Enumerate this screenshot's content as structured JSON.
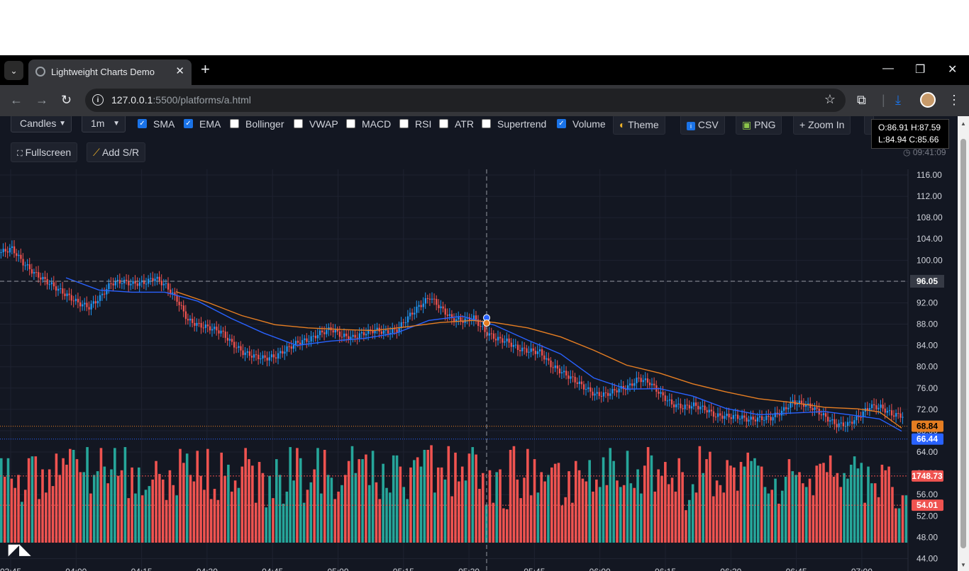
{
  "browser": {
    "tab_title": "Lightweight Charts Demo",
    "tab_close": "✕",
    "new_tab": "+",
    "url_host": "127.0.0.1",
    "url_path": ":5500/platforms/a.html",
    "minimize": "—",
    "restore": "❐",
    "close": "✕"
  },
  "toolbar": {
    "chart_type": "Candles",
    "interval": "1m",
    "indicators": [
      {
        "label": "SMA",
        "checked": true
      },
      {
        "label": "EMA",
        "checked": true
      },
      {
        "label": "Bollinger",
        "checked": false
      },
      {
        "label": "VWAP",
        "checked": false
      },
      {
        "label": "MACD",
        "checked": false
      },
      {
        "label": "RSI",
        "checked": false
      },
      {
        "label": "ATR",
        "checked": false
      },
      {
        "label": "Supertrend",
        "checked": false
      },
      {
        "label": "Volume",
        "checked": true
      }
    ],
    "theme_label": "Theme",
    "csv_label": "CSV",
    "png_label": "PNG",
    "zoom_in_label": "Zoom In",
    "fullscreen_label": "Fullscreen",
    "add_sr_label": "Add S/R"
  },
  "legend": {
    "ohlc_line1": "O:86.91 H:87.59",
    "ohlc_line2": "L:84.94 C:85.66",
    "clock": "09:41:09"
  },
  "colors": {
    "background": "#131722",
    "up": "#26a69a",
    "down": "#ef5350",
    "candle_up": "#2196f3",
    "sma": "#2962ff",
    "ema": "#e67e22"
  },
  "chart_data": {
    "type": "candlestick",
    "y_ticks": [
      "116.00",
      "112.00",
      "108.00",
      "104.00",
      "100.00",
      "96.00",
      "92.00",
      "88.00",
      "84.00",
      "80.00",
      "76.00",
      "72.00",
      "68.00",
      "64.00",
      "60.00",
      "56.00",
      "52.00",
      "48.00",
      "44.00"
    ],
    "x_ticks": [
      "03:45",
      "04:00",
      "04:15",
      "04:30",
      "04:45",
      "05:00",
      "05:15",
      "05:30",
      "05:45",
      "06:00",
      "06:15",
      "06:30",
      "06:45",
      "07:00"
    ],
    "crosshair_price": "96.05",
    "price_labels": [
      {
        "value": "68.84",
        "color": "#e67e22"
      },
      {
        "value": "66.44",
        "color": "#2962ff"
      },
      {
        "value": "1748.73",
        "color": "#ef5350"
      },
      {
        "value": "54.01",
        "color": "#ef5350"
      }
    ],
    "close_path": [
      [
        0,
        101.5
      ],
      [
        5,
        102.2
      ],
      [
        10,
        99.5
      ],
      [
        15,
        97.6
      ],
      [
        20,
        96.2
      ],
      [
        25,
        94.8
      ],
      [
        30,
        93.4
      ],
      [
        35,
        92.0
      ],
      [
        40,
        91.2
      ],
      [
        45,
        93.0
      ],
      [
        50,
        95.7
      ],
      [
        55,
        96.0
      ],
      [
        60,
        95.6
      ],
      [
        65,
        95.8
      ],
      [
        70,
        96.7
      ],
      [
        75,
        95.2
      ],
      [
        80,
        92.6
      ],
      [
        85,
        88.7
      ],
      [
        90,
        87.8
      ],
      [
        95,
        87.3
      ],
      [
        100,
        86.6
      ],
      [
        105,
        84.4
      ],
      [
        110,
        82.7
      ],
      [
        115,
        82.0
      ],
      [
        120,
        81.6
      ],
      [
        125,
        82.0
      ],
      [
        130,
        83.4
      ],
      [
        135,
        84.6
      ],
      [
        140,
        85.1
      ],
      [
        145,
        86.3
      ],
      [
        150,
        87.1
      ],
      [
        155,
        85.8
      ],
      [
        160,
        85.5
      ],
      [
        165,
        86.3
      ],
      [
        170,
        86.9
      ],
      [
        175,
        86.5
      ],
      [
        180,
        86.9
      ],
      [
        185,
        89.3
      ],
      [
        190,
        91.3
      ],
      [
        195,
        93.1
      ],
      [
        200,
        91.0
      ],
      [
        205,
        89.0
      ],
      [
        210,
        88.7
      ],
      [
        215,
        89.2
      ],
      [
        220,
        86.6
      ],
      [
        225,
        85.3
      ],
      [
        230,
        84.8
      ],
      [
        235,
        83.4
      ],
      [
        240,
        83.0
      ],
      [
        245,
        82.8
      ],
      [
        250,
        80.3
      ],
      [
        255,
        79.0
      ],
      [
        260,
        77.7
      ],
      [
        265,
        76.2
      ],
      [
        270,
        74.8
      ],
      [
        275,
        74.8
      ],
      [
        280,
        75.7
      ],
      [
        285,
        76.2
      ],
      [
        290,
        77.8
      ],
      [
        295,
        77.0
      ],
      [
        300,
        74.8
      ],
      [
        305,
        73.0
      ],
      [
        310,
        72.4
      ],
      [
        315,
        72.8
      ],
      [
        320,
        72.1
      ],
      [
        325,
        70.8
      ],
      [
        330,
        70.7
      ],
      [
        335,
        70.6
      ],
      [
        340,
        70.1
      ],
      [
        345,
        70.3
      ],
      [
        350,
        70.4
      ],
      [
        355,
        71.6
      ],
      [
        360,
        73.4
      ],
      [
        365,
        73.0
      ],
      [
        370,
        72.1
      ],
      [
        375,
        70.5
      ],
      [
        380,
        69.1
      ],
      [
        385,
        69.2
      ],
      [
        390,
        70.6
      ],
      [
        395,
        72.6
      ],
      [
        400,
        72.4
      ],
      [
        405,
        71.1
      ],
      [
        410,
        70.8
      ]
    ],
    "sma": [
      [
        30,
        96.7
      ],
      [
        45,
        94.4
      ],
      [
        60,
        94.0
      ],
      [
        75,
        94.0
      ],
      [
        90,
        92.3
      ],
      [
        105,
        89.1
      ],
      [
        120,
        86.3
      ],
      [
        135,
        84.0
      ],
      [
        150,
        84.8
      ],
      [
        165,
        85.3
      ],
      [
        180,
        86.3
      ],
      [
        195,
        88.7
      ],
      [
        210,
        89.5
      ],
      [
        225,
        87.8
      ],
      [
        240,
        85.0
      ],
      [
        255,
        82.4
      ],
      [
        270,
        77.9
      ],
      [
        285,
        75.8
      ],
      [
        300,
        75.9
      ],
      [
        315,
        74.5
      ],
      [
        330,
        72.2
      ],
      [
        345,
        71.0
      ],
      [
        360,
        71.3
      ],
      [
        375,
        71.6
      ],
      [
        390,
        70.8
      ],
      [
        400,
        70.2
      ],
      [
        410,
        67.9
      ]
    ],
    "ema": [
      [
        80,
        94.1
      ],
      [
        95,
        92.0
      ],
      [
        110,
        89.6
      ],
      [
        125,
        87.9
      ],
      [
        140,
        87.3
      ],
      [
        155,
        87.0
      ],
      [
        170,
        86.8
      ],
      [
        185,
        87.5
      ],
      [
        200,
        88.3
      ],
      [
        215,
        88.7
      ],
      [
        225,
        88.3
      ],
      [
        240,
        87.3
      ],
      [
        255,
        85.6
      ],
      [
        270,
        83.1
      ],
      [
        285,
        80.3
      ],
      [
        300,
        78.8
      ],
      [
        315,
        76.8
      ],
      [
        330,
        75.3
      ],
      [
        345,
        74.0
      ],
      [
        360,
        73.3
      ],
      [
        375,
        72.4
      ],
      [
        390,
        72.1
      ],
      [
        400,
        71.5
      ],
      [
        410,
        68.5
      ]
    ],
    "volume": [
      91,
      71,
      91,
      69,
      59,
      73,
      44,
      57,
      91,
      93,
      93,
      47,
      79,
      54,
      79,
      61,
      96,
      73,
      91,
      84,
      101,
      100,
      90,
      76,
      76,
      103,
      53,
      73,
      77,
      102,
      82,
      64,
      79,
      102,
      72,
      78,
      103,
      48,
      81,
      53,
      81,
      51,
      57,
      61,
      68,
      88,
      74,
      68,
      46,
      78,
      62,
      51,
      101,
      86,
      96,
      73,
      66,
      99,
      72,
      57,
      101,
      47,
      58,
      46,
      97,
      72,
      84,
      55,
      67,
      59,
      82,
      102,
      90,
      83,
      43,
      87,
      75,
      38,
      72,
      48,
      90,
      73,
      42,
      55,
      103,
      67,
      102,
      91,
      43,
      57,
      65,
      79,
      102,
      53,
      100,
      73,
      70,
      47,
      55,
      62,
      73,
      88,
      104,
      75,
      90,
      90,
      95,
      62,
      99,
      65,
      47,
      85,
      59,
      54,
      94,
      94,
      82,
      60,
      47,
      81,
      89,
      92,
      82,
      100,
      100,
      105,
      54,
      81,
      81,
      68,
      104,
      50,
      97,
      66,
      82,
      67,
      96,
      103,
      95,
      58,
      75,
      41,
      78,
      43,
      76,
      79,
      37,
      36,
      100,
      104,
      68,
      48,
      70,
      101,
      51,
      90,
      54,
      76,
      66,
      73,
      81,
      85,
      86,
      40,
      49,
      77,
      43,
      88,
      78,
      69,
      66,
      89,
      55,
      68,
      60,
      92,
      62,
      102,
      88,
      67,
      60,
      62,
      99,
      64,
      59,
      79,
      53,
      83,
      103,
      94,
      55,
      79,
      72,
      87,
      63,
      70,
      55,
      91,
      76,
      35,
      46,
      63,
      54,
      104,
      75,
      90,
      98,
      50,
      67,
      62,
      54,
      89,
      83,
      81,
      56,
      87,
      82,
      97,
      88,
      91,
      83,
      82,
      60,
      53,
      57,
      69,
      42,
      56,
      71,
      90,
      77,
      73,
      76,
      64,
      60,
      69,
      51,
      83,
      85,
      86,
      76,
      94,
      71,
      75,
      60,
      75,
      69,
      84,
      93,
      80,
      86,
      43,
      82,
      64,
      64,
      49,
      84,
      78,
      82,
      60,
      37,
      37,
      51,
      51,
      89,
      61,
      65,
      59,
      90,
      85,
      52,
      45,
      75
    ]
  }
}
